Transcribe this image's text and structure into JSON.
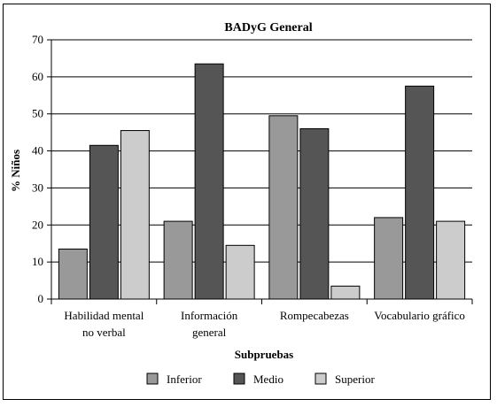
{
  "chart_data": {
    "type": "bar",
    "title": "BADyG General",
    "xlabel": "Subpruebas",
    "ylabel": "% Niños",
    "ylim": [
      0,
      70
    ],
    "yticks": [
      0,
      10,
      20,
      30,
      40,
      50,
      60,
      70
    ],
    "grid": true,
    "legend_position": "bottom",
    "categories": [
      [
        "Habilidad mental",
        "no verbal"
      ],
      [
        "Información",
        "general"
      ],
      [
        "Rompecabezas"
      ],
      [
        "Vocabulario gráfico"
      ]
    ],
    "series": [
      {
        "name": "Inferior",
        "color": "#999999",
        "values": [
          13.5,
          21,
          49.5,
          22
        ]
      },
      {
        "name": "Medio",
        "color": "#555555",
        "values": [
          41.5,
          63.5,
          46,
          57.5
        ]
      },
      {
        "name": "Superior",
        "color": "#cccccc",
        "values": [
          45.5,
          14.5,
          3.5,
          21
        ]
      }
    ]
  }
}
